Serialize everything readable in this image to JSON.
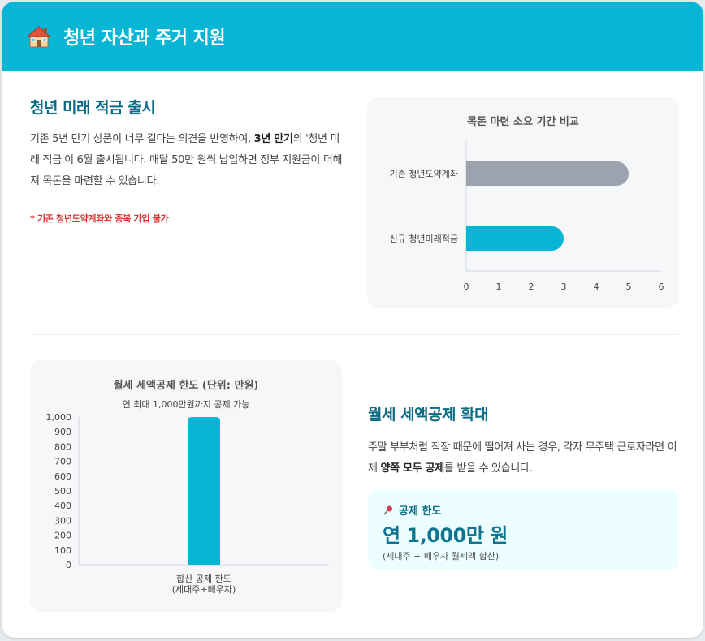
{
  "header": {
    "title": "청년 자산과 주거 지원",
    "icon": "house-icon"
  },
  "section1": {
    "title": "청년 미래 적금 출시",
    "body_pre": "기존 5년 만기 상품이 너무 길다는 의견을 반영하여, ",
    "body_bold": "3년 만기",
    "body_post": "의 '청년 미래 적금'이 6월 출시됩니다. 매달 50만 원씩 납입하면 정부 지원금이 더해져 목돈을 마련할 수 있습니다.",
    "note": "* 기존 청년도약계좌와 중복 가입 불가"
  },
  "section2": {
    "title": "월세 세액공제 확대",
    "body_pre": "주말 부부처럼 직장 때문에 떨어져 사는 경우, 각자 무주택 근로자라면 이제 ",
    "body_bold": "양쪽 모두 공제",
    "body_post": "를 받을 수 있습니다.",
    "highlight": {
      "label": "공제 한도",
      "icon": "pushpin-icon",
      "value": "연 1,000만 원",
      "note": "(세대주 + 배우자 월세액 합산)"
    }
  },
  "colors": {
    "accent": "#06b6d4",
    "title": "#0e6b85",
    "grey_bar": "#9ca3af",
    "note_red": "#e03131"
  },
  "chart_data": [
    {
      "type": "bar",
      "orientation": "horizontal",
      "title": "목돈 마련 소요 기간 비교",
      "categories": [
        "기존 청년도약계좌",
        "신규 청년미래적금"
      ],
      "values": [
        5,
        3
      ],
      "colors": [
        "#9ca3af",
        "#06b6d4"
      ],
      "xlim": [
        0,
        6
      ],
      "xticks": [
        0,
        1,
        2,
        3,
        4,
        5,
        6
      ]
    },
    {
      "type": "bar",
      "title": "월세 세액공제 한도 (단위: 만원)",
      "subtitle": "연 최대 1,000만원까지 공제 가능",
      "categories": [
        [
          "합산 공제 한도",
          "(세대주+배우자)"
        ]
      ],
      "values": [
        1000
      ],
      "ylim": [
        0,
        1000
      ],
      "yticks": [
        "0",
        "100",
        "200",
        "300",
        "400",
        "500",
        "600",
        "700",
        "800",
        "900",
        "1,000"
      ],
      "color": "#06b6d4"
    }
  ]
}
